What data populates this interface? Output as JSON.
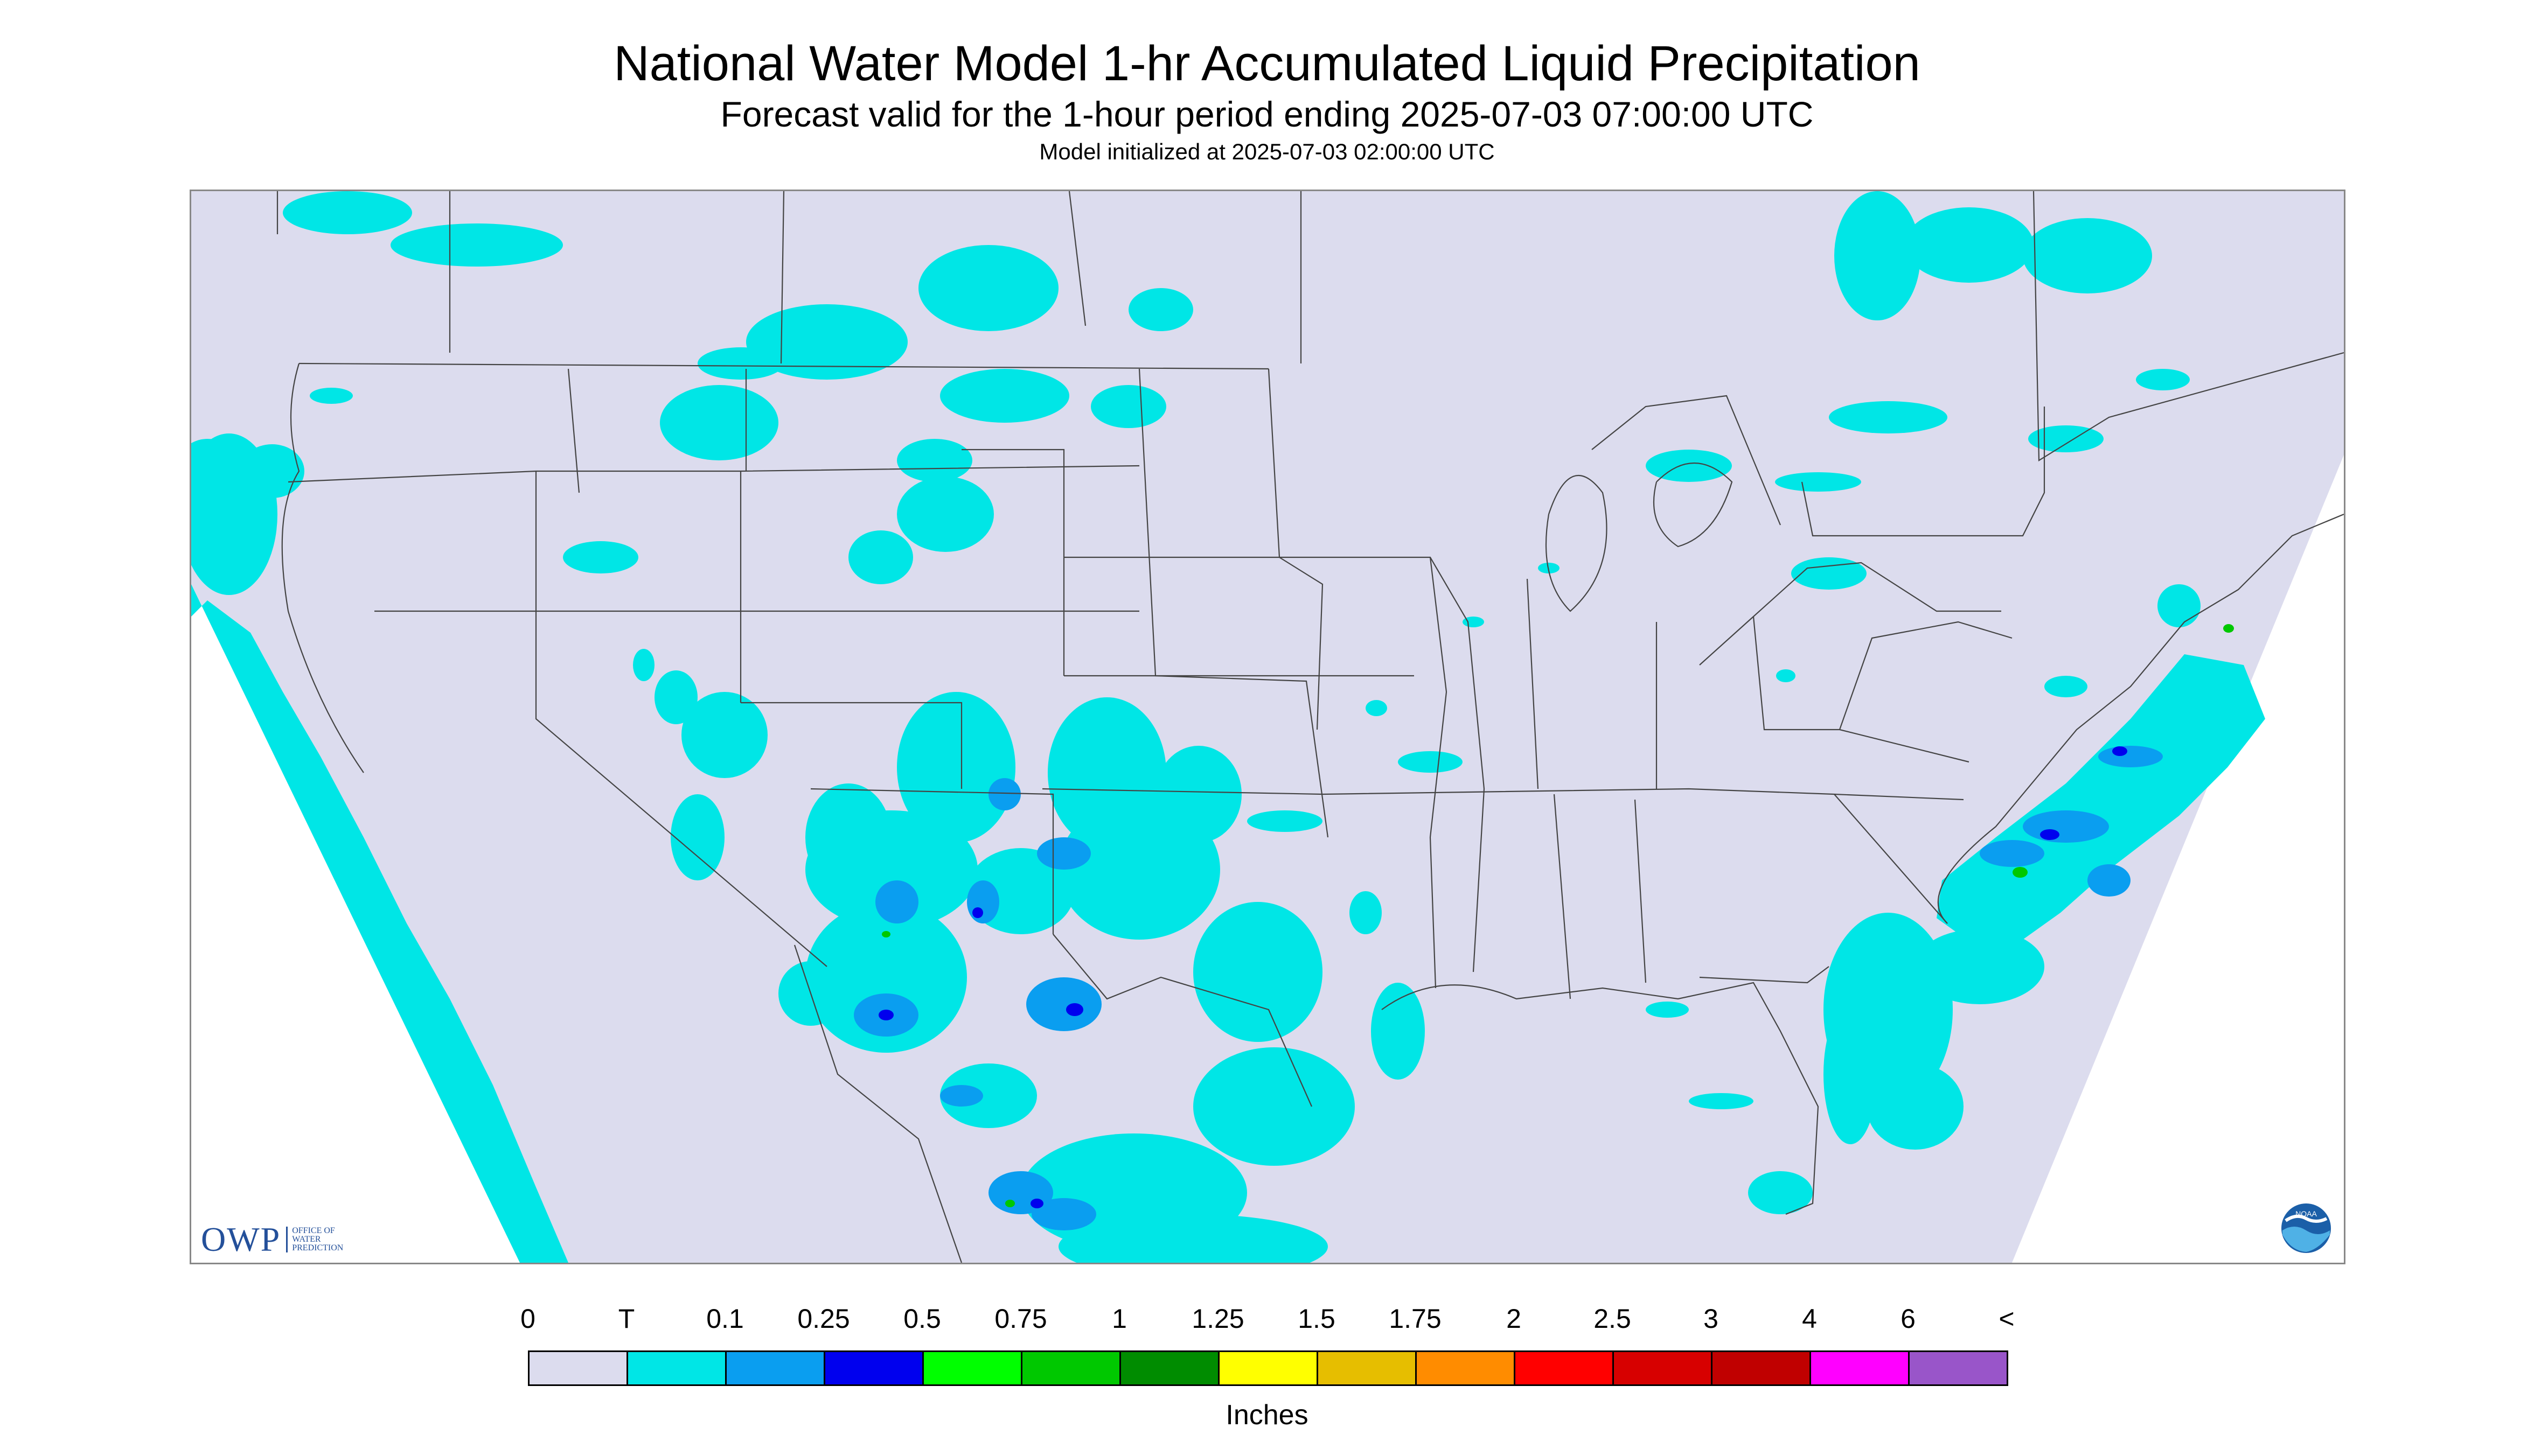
{
  "header": {
    "title": "National Water Model 1-hr Accumulated Liquid Precipitation",
    "subtitle": "Forecast valid for the 1-hour period ending 2025-07-03 07:00:00 UTC",
    "model_init": "Model initialized at 2025-07-03 02:00:00 UTC"
  },
  "logos": {
    "owp_text": "OWP",
    "owp_subtext": [
      "OFFICE OF",
      "WATER",
      "PREDICTION"
    ],
    "noaa_text": "NOAA"
  },
  "legend": {
    "labels": [
      "0",
      "T",
      "0.1",
      "0.25",
      "0.5",
      "0.75",
      "1",
      "1.25",
      "1.5",
      "1.75",
      "2",
      "2.5",
      "3",
      "4",
      "6",
      "<"
    ],
    "colors": [
      "#dcdcee",
      "#00e6e6",
      "#0a9ef0",
      "#0000ee",
      "#00ff00",
      "#00c800",
      "#008c00",
      "#ffff00",
      "#e6be00",
      "#ff8c00",
      "#ff0000",
      "#d70000",
      "#c00000",
      "#ff00ff",
      "#9955c9"
    ],
    "units": "Inches"
  },
  "map": {
    "background": "#dcdcee",
    "outside": "#ffffff",
    "trace_color": "#00e6e6",
    "light_color": "#0a9ef0",
    "heavy_color": "#0000ee",
    "extreme_color": "#00c800",
    "boundary_color": "#444444"
  }
}
